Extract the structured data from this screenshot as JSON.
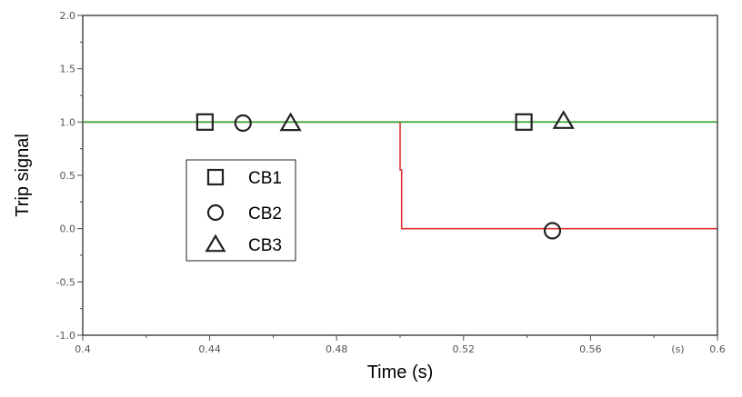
{
  "chart_data": {
    "type": "line",
    "title": "",
    "xlabel": "Time (s)",
    "ylabel": "Trip signal",
    "x_unit_label": "(s)",
    "xlim": [
      0.4,
      0.6
    ],
    "ylim": [
      -1.0,
      2.0
    ],
    "x_ticks": [
      0.4,
      0.44,
      0.48,
      0.52,
      0.56,
      0.6
    ],
    "x_tick_labels": [
      "0.4",
      "0.44",
      "0.48",
      "0.52",
      "0.56",
      "0.6"
    ],
    "y_ticks": [
      -1.0,
      -0.5,
      0.0,
      0.5,
      1.0,
      1.5,
      2.0
    ],
    "y_tick_labels": [
      "-1.0",
      "-0.5",
      "0.0",
      "0.5",
      "1.0",
      "1.5",
      "2.0"
    ],
    "grid": false,
    "legend_position": "left, inside plot",
    "series": [
      {
        "color": "#2ca02c",
        "x": [
          0.4,
          0.6
        ],
        "y": [
          1.0,
          1.0
        ]
      },
      {
        "color": "#e03030",
        "x": [
          0.4,
          0.5,
          0.5,
          0.5005,
          0.5005,
          0.6
        ],
        "y": [
          1.0,
          1.0,
          0.55,
          0.55,
          0.0,
          0.0
        ]
      }
    ],
    "markers": [
      {
        "symbol": "square",
        "label": "CB1",
        "points": [
          [
            0.4385,
            1.0
          ],
          [
            0.539,
            1.0
          ]
        ]
      },
      {
        "symbol": "circle",
        "label": "CB2",
        "points": [
          [
            0.4505,
            0.99
          ],
          [
            0.548,
            -0.02
          ]
        ]
      },
      {
        "symbol": "triangle",
        "label": "CB3",
        "points": [
          [
            0.4655,
            0.99
          ],
          [
            0.5515,
            1.01
          ]
        ]
      }
    ],
    "legend": [
      {
        "symbol": "square",
        "label": "CB1"
      },
      {
        "symbol": "circle",
        "label": "CB2"
      },
      {
        "symbol": "triangle",
        "label": "CB3"
      }
    ]
  }
}
